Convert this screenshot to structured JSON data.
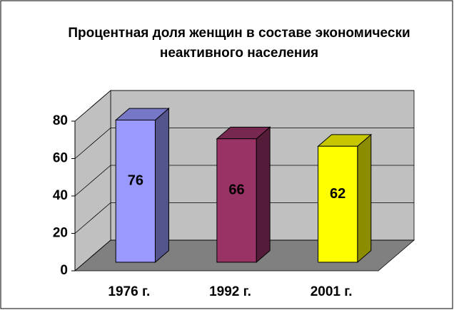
{
  "chart_data": {
    "type": "bar3d",
    "title": "Процентная доля женщин в составе экономически неактивного населения",
    "categories": [
      "1976 г.",
      "1992 г.",
      "2001 г."
    ],
    "values": [
      76,
      66,
      62
    ],
    "colors": [
      "#9999ff",
      "#993366",
      "#ffff00"
    ],
    "ylim": [
      0,
      80
    ],
    "yticks": [
      0,
      20,
      40,
      60,
      80
    ],
    "grid": true
  }
}
